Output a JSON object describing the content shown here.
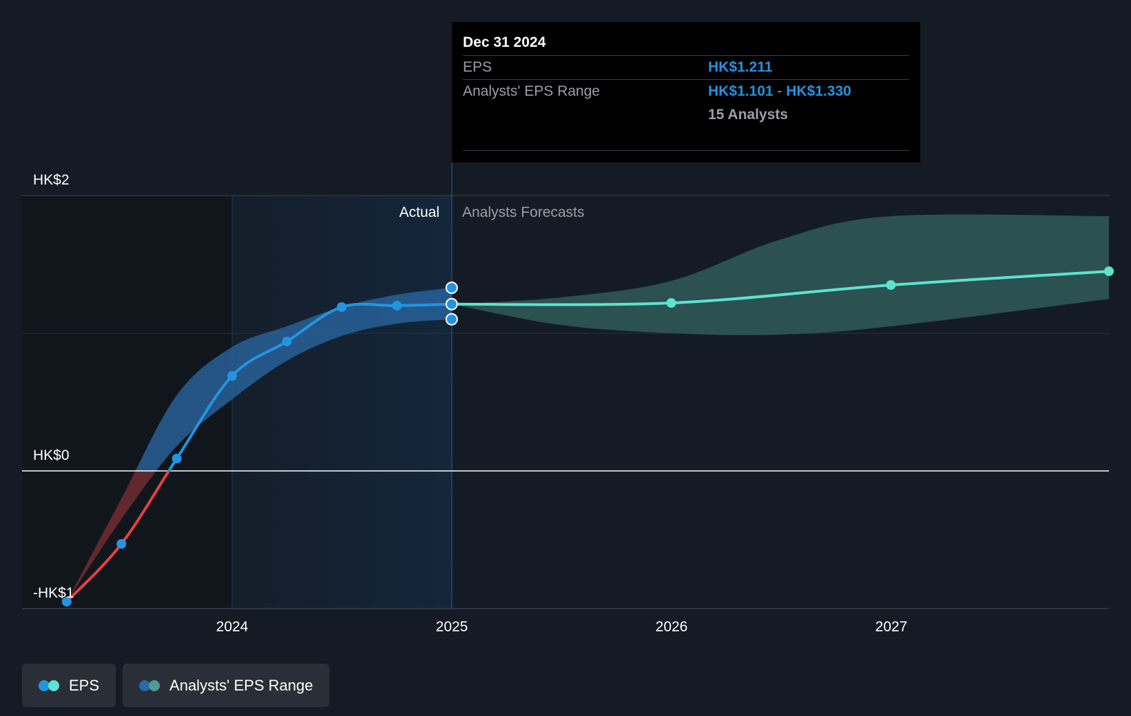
{
  "chart_data": {
    "type": "line",
    "title": "",
    "xlabel": "",
    "ylabel": "",
    "x_ticks": [
      "2024",
      "2025",
      "2026",
      "2027"
    ],
    "y_ticks": [
      "HK$2",
      "HK$0",
      "-HK$1"
    ],
    "ylim": [
      -1,
      2
    ],
    "section_labels": {
      "actual": "Actual",
      "forecast": "Analysts Forecasts"
    },
    "series": [
      {
        "name": "EPS",
        "kind": "actual",
        "points": [
          {
            "x": "2023-04-01",
            "y": -0.95
          },
          {
            "x": "2023-07-01",
            "y": -0.53
          },
          {
            "x": "2023-10-01",
            "y": 0.09
          },
          {
            "x": "2024-01-01",
            "y": 0.69
          },
          {
            "x": "2024-04-01",
            "y": 0.94
          },
          {
            "x": "2024-07-01",
            "y": 1.19
          },
          {
            "x": "2024-10-01",
            "y": 1.2
          },
          {
            "x": "2024-12-31",
            "y": 1.211
          }
        ]
      },
      {
        "name": "EPS",
        "kind": "forecast",
        "points": [
          {
            "x": "2024-12-31",
            "y": 1.211
          },
          {
            "x": "2025-12-31",
            "y": 1.22
          },
          {
            "x": "2026-12-31",
            "y": 1.35
          },
          {
            "x": "2027-12-31",
            "y": 1.45
          }
        ]
      },
      {
        "name": "Analysts' EPS Range",
        "kind": "actual_range",
        "points": [
          {
            "x": "2023-04-01",
            "low": -0.95,
            "high": -0.95
          },
          {
            "x": "2023-07-01",
            "low": -0.35,
            "high": -0.2
          },
          {
            "x": "2023-10-01",
            "low": 0.18,
            "high": 0.55
          },
          {
            "x": "2024-01-01",
            "low": 0.52,
            "high": 0.9
          },
          {
            "x": "2024-04-01",
            "low": 0.8,
            "high": 1.05
          },
          {
            "x": "2024-07-01",
            "low": 0.98,
            "high": 1.19
          },
          {
            "x": "2024-10-01",
            "low": 1.07,
            "high": 1.28
          },
          {
            "x": "2024-12-31",
            "low": 1.101,
            "high": 1.33
          }
        ]
      },
      {
        "name": "Analysts' EPS Range",
        "kind": "forecast_range",
        "points": [
          {
            "x": "2024-12-31",
            "low": 1.211,
            "high": 1.211
          },
          {
            "x": "2025-06-30",
            "low": 1.06,
            "high": 1.26
          },
          {
            "x": "2025-12-31",
            "low": 1.0,
            "high": 1.38
          },
          {
            "x": "2026-06-30",
            "low": 0.99,
            "high": 1.68
          },
          {
            "x": "2026-12-31",
            "low": 1.05,
            "high": 1.85
          },
          {
            "x": "2027-12-31",
            "low": 1.25,
            "high": 1.85
          }
        ]
      }
    ],
    "colors": {
      "negative": "#e5413f",
      "actual": "#2394df",
      "forecast": "#5de3cf",
      "actual_band": "#2a6aa6",
      "forecast_band": "#2f5b58",
      "negative_band": "#6a2a31",
      "actual_region": "#14263b"
    }
  },
  "tooltip": {
    "date": "Dec 31 2024",
    "eps_label": "EPS",
    "eps_value": "HK$1.211",
    "range_label": "Analysts' EPS Range",
    "range_low": "HK$1.101",
    "range_sep": "-",
    "range_high": "HK$1.330",
    "analysts": "15 Analysts"
  },
  "legend": [
    {
      "label": "EPS",
      "icon": "eps-dots-icon",
      "colors": [
        "#2394df",
        "#5de3cf"
      ]
    },
    {
      "label": "Analysts' EPS Range",
      "icon": "range-dots-icon",
      "colors": [
        "#2a6aa6",
        "#4d9b91"
      ]
    }
  ]
}
